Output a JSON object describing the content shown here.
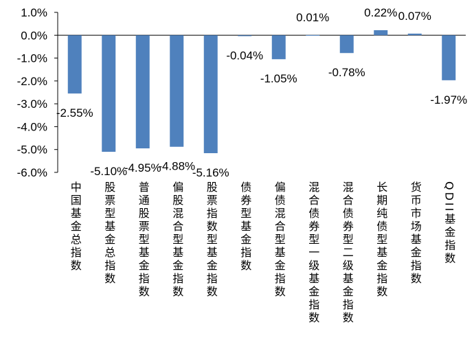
{
  "chart_data": {
    "type": "bar",
    "title": "",
    "xlabel": "",
    "ylabel": "",
    "ylim": [
      -6.0,
      1.0
    ],
    "yticks": [
      "1.0%",
      "0.0%",
      "-1.0%",
      "-2.0%",
      "-3.0%",
      "-4.0%",
      "-5.0%",
      "-6.0%"
    ],
    "ytick_values": [
      1,
      0,
      -1,
      -2,
      -3,
      -4,
      -5,
      -6
    ],
    "grid": false,
    "bar_color": "#4F81BD",
    "categories": [
      "中国基金总指数",
      "股票型基金总指数",
      "普通股票型基金指数",
      "偏股混合型基金指数",
      "股票指数型基金指数",
      "债券型基金指数",
      "偏债混合型基金指数",
      "混合债券型一级基金指数",
      "混合债券型二级基金指数",
      "长期纯债型基金指数",
      "货币市场基金指数",
      "QDII基金指数"
    ],
    "values": [
      -2.55,
      -5.1,
      -4.95,
      -4.88,
      -5.16,
      -0.04,
      -1.05,
      0.01,
      -0.78,
      0.22,
      0.07,
      -1.97
    ],
    "data_labels": [
      "-2.55%",
      "-5.10%",
      "-4.95%",
      "-4.88%",
      "-5.16%",
      "-0.04%",
      "-1.05%",
      "0.01%",
      "-0.78%",
      "0.22%",
      "0.07%",
      "-1.97%"
    ]
  }
}
